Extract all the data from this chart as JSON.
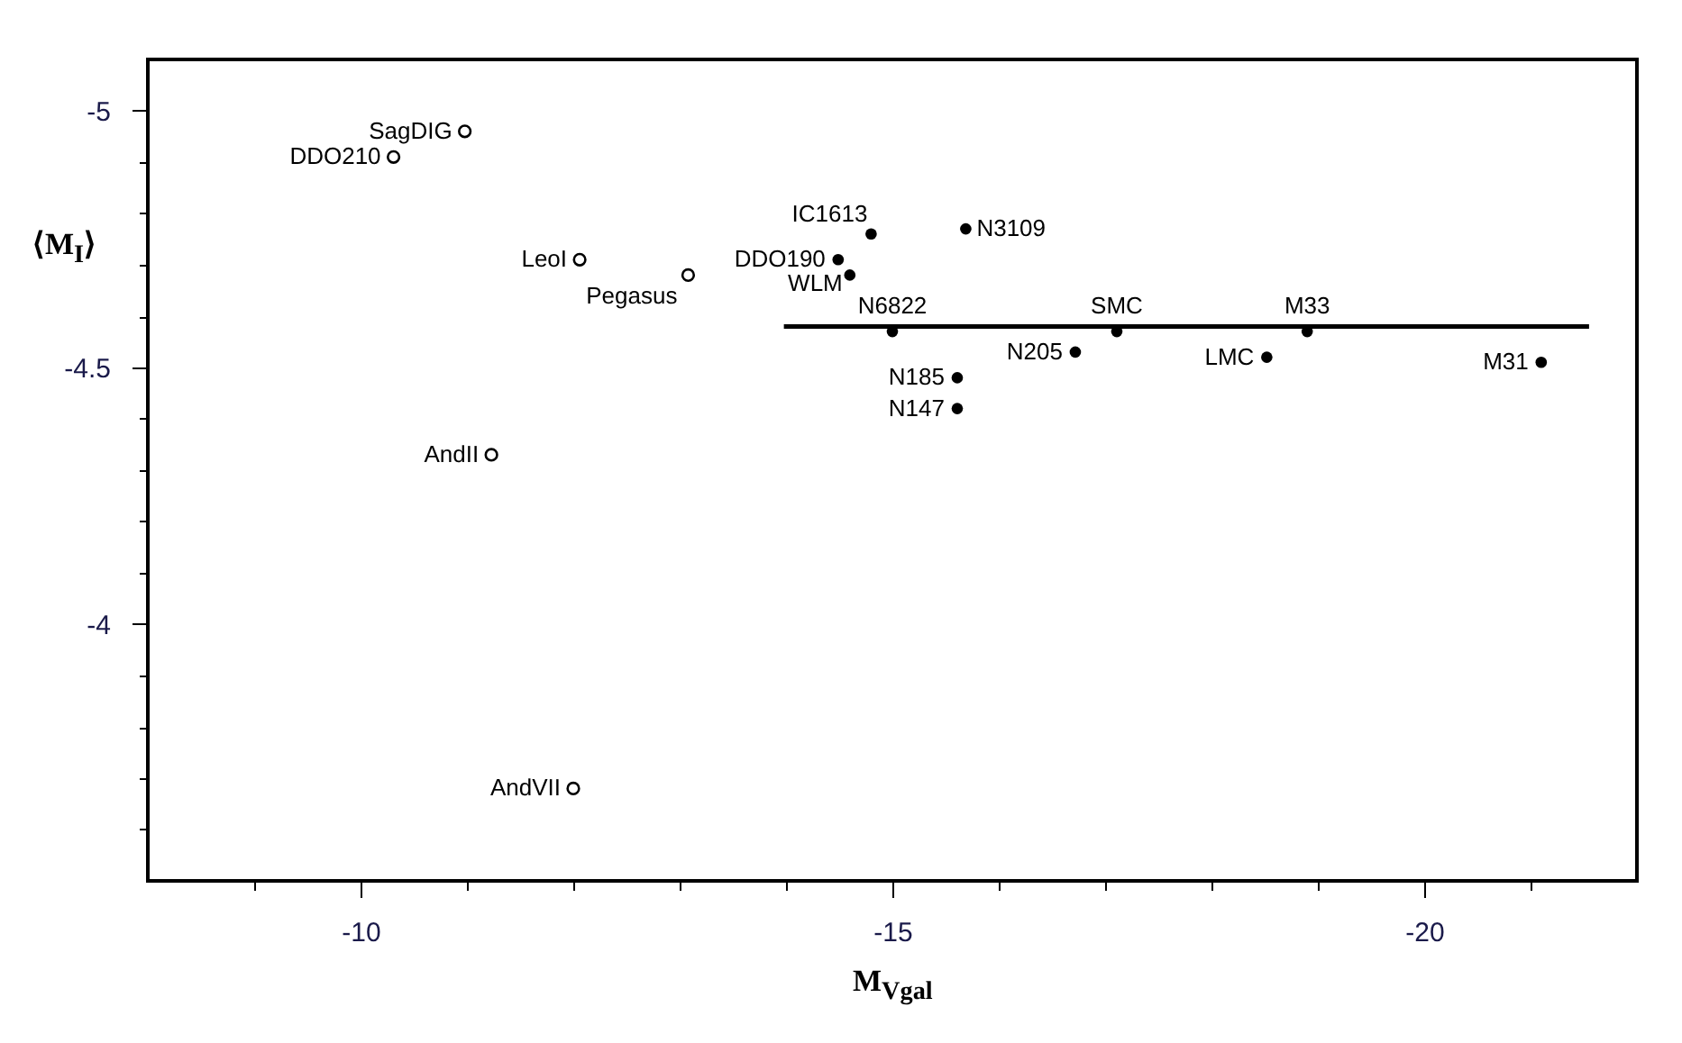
{
  "chart_data": {
    "type": "scatter",
    "xlabel": "M$_{Vgal}$",
    "ylabel": "⟨M$_{I}$⟩",
    "xlim": [
      -8,
      -22
    ],
    "ylim": [
      -3.5,
      -5.1
    ],
    "xticks": [
      {
        "value": -9,
        "label": null
      },
      -10,
      {
        "value": -11,
        "label": null
      },
      {
        "value": -12,
        "label": null
      },
      {
        "value": -13,
        "label": null
      },
      {
        "value": -14,
        "label": null
      },
      -15,
      {
        "value": -16,
        "label": null
      },
      {
        "value": -17,
        "label": null
      },
      {
        "value": -18,
        "label": null
      },
      {
        "value": -19,
        "label": null
      },
      -20,
      {
        "value": -21,
        "label": null
      }
    ],
    "yticks": [
      {
        "value": -3.6,
        "label": null
      },
      {
        "value": -3.7,
        "label": null
      },
      {
        "value": -3.8,
        "label": null
      },
      {
        "value": -3.9,
        "label": null
      },
      -4,
      {
        "value": -4.1,
        "label": null
      },
      {
        "value": -4.2,
        "label": null
      },
      {
        "value": -4.3,
        "label": null
      },
      {
        "value": -4.4,
        "label": null
      },
      -4.5,
      {
        "value": -4.6,
        "label": null
      },
      {
        "value": -4.7,
        "label": null
      },
      {
        "value": -4.8,
        "label": null
      },
      {
        "value": -4.9,
        "label": null
      },
      -5
    ],
    "grid": false,
    "series": [
      {
        "color": "#000000",
        "marker": "circle",
        "x": [
          -10.98,
          -10.31,
          -12.06,
          -13.08,
          -11.23,
          -12.0
        ],
        "values": [
          -4.96,
          -4.91,
          -4.71,
          -4.68,
          -4.33,
          -3.68
        ]
      },
      {
        "color": "#000000",
        "marker": "circle",
        "x": [
          -14.8,
          -15.69,
          -14.49,
          -14.6,
          -15.0,
          -17.11,
          -18.9,
          -16.72,
          -18.52,
          -21.1,
          -15.61,
          -15.61
        ],
        "values": [
          -4.76,
          -4.77,
          -4.71,
          -4.68,
          -4.57,
          -4.57,
          -4.57,
          -4.53,
          -4.52,
          -4.51,
          -4.48,
          -4.42
        ]
      },
      {
        "type": "line",
        "color": "#000000",
        "x": [
          -13.98,
          -21.55
        ],
        "values": [
          -4.58,
          -4.58
        ]
      }
    ],
    "annotations": [
      {
        "text": "SagDIG",
        "x": -10.98,
        "y": -4.96
      },
      {
        "text": "DDO210",
        "x": -10.31,
        "y": -4.91
      },
      {
        "text": "LeoI",
        "x": -12.06,
        "y": -4.71
      },
      {
        "text": "Pegasus",
        "x": -13.08,
        "y": -4.68
      },
      {
        "text": "AndII",
        "x": -11.23,
        "y": -4.33
      },
      {
        "text": "AndVII",
        "x": -12.0,
        "y": -3.68
      },
      {
        "text": "IC1613",
        "x": -14.8,
        "y": -4.76
      },
      {
        "text": "N3109",
        "x": -15.69,
        "y": -4.77
      },
      {
        "text": "DDO190",
        "x": -14.49,
        "y": -4.71
      },
      {
        "text": "WLM",
        "x": -14.6,
        "y": -4.68
      },
      {
        "text": "N6822",
        "x": -15.0,
        "y": -4.57
      },
      {
        "text": "SMC",
        "x": -17.11,
        "y": -4.57
      },
      {
        "text": "M33",
        "x": -18.9,
        "y": -4.57
      },
      {
        "text": "N205",
        "x": -16.72,
        "y": -4.53
      },
      {
        "text": "LMC",
        "x": -18.52,
        "y": -4.52
      },
      {
        "text": "M31",
        "x": -21.1,
        "y": -4.51
      },
      {
        "text": "N185",
        "x": -15.61,
        "y": -4.48
      },
      {
        "text": "N147",
        "x": -15.61,
        "y": -4.42
      }
    ]
  }
}
